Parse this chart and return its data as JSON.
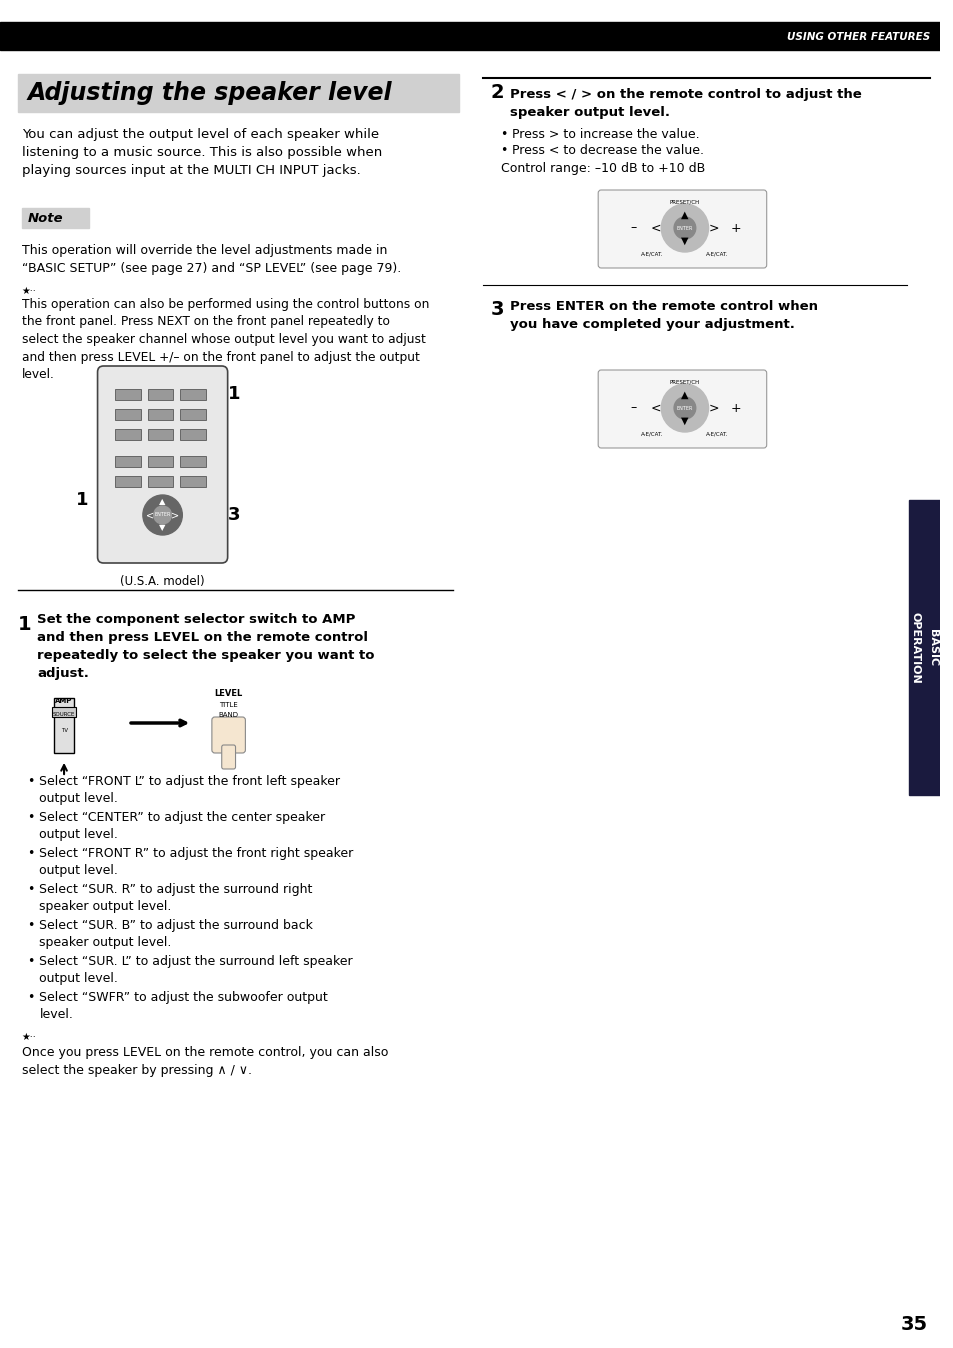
{
  "page_number": "35",
  "header_text": "USING OTHER FEATURES",
  "title": "Adjusting the speaker level",
  "intro_text": "You can adjust the output level of each speaker while\nlistening to a music source. This is also possible when\nplaying sources input at the MULTI CH INPUT jacks.",
  "note_label": "Note",
  "note_text": "This operation will override the level adjustments made in\n“BASIC SETUP” (see page 27) and “SP LEVEL” (see page 79).",
  "tip_text1": "This operation can also be performed using the control buttons on\nthe front panel. Press NEXT on the front panel repeatedly to\nselect the speaker channel whose output level you want to adjust\nand then press LEVEL +/– on the front panel to adjust the output\nlevel.",
  "step1_num": "1",
  "step1_bold": "Set the component selector switch to AMP\nand then press LEVEL on the remote control\nrepeatedly to select the speaker you want to\nadjust.",
  "step1_bullets": [
    "Select “FRONT L” to adjust the front left speaker\noutput level.",
    "Select “CENTER” to adjust the center speaker\noutput level.",
    "Select “FRONT R” to adjust the front right speaker\noutput level.",
    "Select “SUR. R” to adjust the surround right\nspeaker output level.",
    "Select “SUR. B” to adjust the surround back\nspeaker output level.",
    "Select “SUR. L” to adjust the surround left speaker\noutput level.",
    "Select “SWFR” to adjust the subwoofer output\nlevel."
  ],
  "tip_text2": "Once you press LEVEL on the remote control, you can also\nselect the speaker by pressing ∧ / ∨.",
  "step2_num": "2",
  "step2_bold": "Press < / > on the remote control to adjust the\nspeaker output level.",
  "step2_bullets": [
    "Press > to increase the value.",
    "Press < to decrease the value."
  ],
  "step2_extra": "Control range: –10 dB to +10 dB",
  "step3_num": "3",
  "step3_bold": "Press ENTER on the remote control when\nyou have completed your adjustment.",
  "model_label": "(U.S.A. model)",
  "sidebar_text": "BASIC\nOPERATION",
  "bg_color": "#ffffff",
  "header_bg": "#000000",
  "header_fg": "#ffffff",
  "title_bg": "#d0d0d0",
  "note_bg": "#d0d0d0",
  "sidebar_bg": "#1a1a3e"
}
